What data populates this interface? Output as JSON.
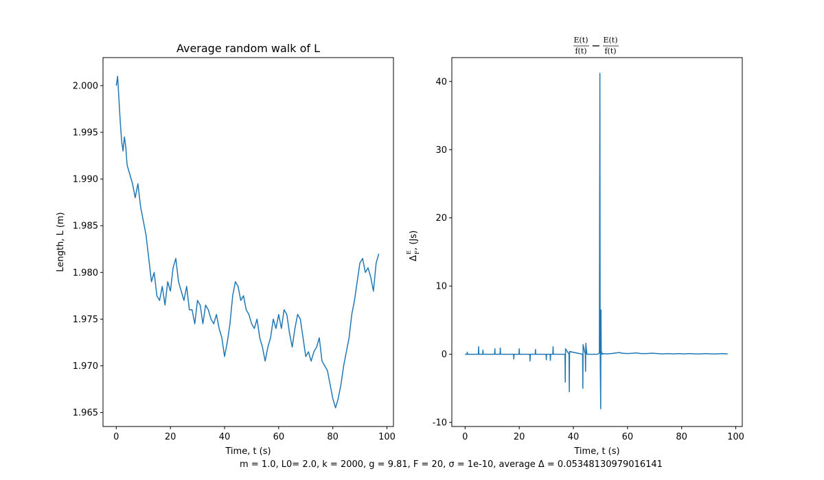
{
  "chart_data": [
    {
      "type": "line",
      "title": "Average random walk of L",
      "xlabel": "Time, t (s)",
      "ylabel": "Length, L (m)",
      "xlim": [
        -4.9,
        102.4
      ],
      "ylim": [
        1.9635,
        2.003
      ],
      "xticks": [
        0,
        20,
        40,
        60,
        80,
        100
      ],
      "yticks": [
        1.965,
        1.97,
        1.975,
        1.98,
        1.985,
        1.99,
        1.995,
        2.0
      ],
      "ytick_labels": [
        "1.965",
        "1.970",
        "1.975",
        "1.980",
        "1.985",
        "1.990",
        "1.995",
        "2.000"
      ],
      "color": "#1f77b4",
      "series": [
        {
          "x": [
            0,
            0.5,
            1,
            1.5,
            2,
            2.5,
            3,
            3.5,
            4,
            5,
            6,
            7,
            8,
            9,
            10,
            11,
            12,
            13,
            14,
            15,
            16,
            17,
            18,
            19,
            20,
            21,
            22,
            23,
            24,
            25,
            26,
            27,
            28,
            29,
            30,
            31,
            32,
            33,
            34,
            35,
            36,
            37,
            38,
            39,
            40,
            41,
            42,
            43,
            44,
            45,
            46,
            47,
            48,
            49,
            50,
            51,
            52,
            53,
            54,
            55,
            56,
            57,
            58,
            59,
            60,
            61,
            62,
            63,
            64,
            65,
            66,
            67,
            68,
            69,
            70,
            71,
            72,
            73,
            74,
            75,
            76,
            77,
            78,
            79,
            80,
            81,
            82,
            83,
            84,
            85,
            86,
            87,
            88,
            89,
            90,
            91,
            92,
            93,
            94,
            95,
            96,
            97
          ],
          "y": [
            2.0,
            2.001,
            1.9985,
            1.996,
            1.994,
            1.993,
            1.9945,
            1.9935,
            1.9915,
            1.9905,
            1.9895,
            1.988,
            1.9895,
            1.987,
            1.9855,
            1.984,
            1.9815,
            1.979,
            1.98,
            1.9775,
            1.977,
            1.9785,
            1.9765,
            1.979,
            1.978,
            1.9805,
            1.9815,
            1.979,
            1.978,
            1.977,
            1.9785,
            1.976,
            1.976,
            1.9745,
            1.977,
            1.9765,
            1.9745,
            1.9765,
            1.976,
            1.975,
            1.9745,
            1.9755,
            1.974,
            1.973,
            1.971,
            1.9725,
            1.9745,
            1.9775,
            1.979,
            1.9785,
            1.977,
            1.9775,
            1.976,
            1.9755,
            1.9745,
            1.974,
            1.975,
            1.973,
            1.972,
            1.9705,
            1.972,
            1.973,
            1.975,
            1.974,
            1.9755,
            1.974,
            1.976,
            1.9755,
            1.9735,
            1.972,
            1.974,
            1.9755,
            1.975,
            1.973,
            1.971,
            1.9715,
            1.9705,
            1.9715,
            1.972,
            1.973,
            1.9705,
            1.97,
            1.9695,
            1.968,
            1.9665,
            1.9655,
            1.9665,
            1.968,
            1.97,
            1.9715,
            1.973,
            1.9755,
            1.977,
            1.979,
            1.981,
            1.9815,
            1.98,
            1.9805,
            1.9795,
            1.978,
            1.981,
            1.982
          ]
        }
      ]
    },
    {
      "type": "line",
      "title": "E(t)/f(t) − E(t)/f(t)",
      "title_parts": {
        "n1": "E(t)",
        "d1": "f(t)",
        "op": "−",
        "n2": "E(t)",
        "d2": "f(t)"
      },
      "xlabel": "Time, t (s)",
      "ylabel_parts": {
        "delta": "Δ",
        "sup": "E",
        "sub": "F",
        "rest": ", (Js)"
      },
      "xlim": [
        -4.9,
        102.4
      ],
      "ylim": [
        -10.6,
        43.5
      ],
      "xticks": [
        0,
        20,
        40,
        60,
        80,
        100
      ],
      "yticks": [
        -10,
        0,
        10,
        20,
        30,
        40
      ],
      "color": "#1f77b4",
      "series": [
        {
          "x": [
            0,
            0.7,
            0.8,
            0.9,
            1.5,
            4.9,
            5.0,
            5.1,
            6.5,
            6.6,
            6.7,
            10.9,
            11.0,
            11.1,
            12.9,
            13.0,
            13.1,
            17.9,
            18.0,
            18.1,
            19.9,
            20.0,
            20.1,
            23.9,
            24.0,
            24.1,
            25.9,
            26.0,
            26.1,
            29.9,
            30.0,
            30.1,
            31.4,
            31.5,
            31.6,
            32.4,
            32.5,
            32.6,
            36.9,
            37.0,
            37.1,
            38.4,
            38.5,
            38.6,
            43.4,
            43.5,
            43.6,
            44.4,
            44.5,
            44.6,
            45.0,
            49.0,
            49.6,
            49.8,
            49.9,
            50.0,
            50.1,
            50.2,
            50.3,
            50.4,
            50.5,
            50.6,
            50.7,
            50.8,
            51.2,
            52,
            54,
            56,
            57,
            58,
            60,
            62,
            63,
            65,
            67,
            69,
            71,
            73,
            75,
            77,
            79,
            81,
            83,
            85,
            87,
            89,
            91,
            93,
            95,
            97
          ],
          "y": [
            0,
            0,
            0.3,
            0,
            0,
            0,
            1.1,
            0,
            0,
            0.6,
            0,
            0,
            0.8,
            0,
            0,
            0.9,
            0,
            0,
            -0.7,
            0,
            0,
            0.8,
            0,
            0,
            -1.0,
            0,
            0,
            0.7,
            0,
            0,
            -0.8,
            0,
            0,
            -0.9,
            0,
            0,
            1.1,
            0,
            0,
            -4.1,
            0.8,
            0,
            -5.5,
            0.4,
            0,
            -5.0,
            1.4,
            0,
            -2.5,
            1.6,
            0,
            0,
            0.2,
            41.2,
            0.4,
            -4.3,
            -8.0,
            6.5,
            0.2,
            0.4,
            0.1,
            0,
            0.1,
            0,
            0.1,
            0.05,
            0.1,
            0.2,
            0.25,
            0.15,
            0.1,
            0.15,
            0.2,
            0.1,
            0.1,
            0.15,
            0.1,
            0.05,
            0.1,
            0.05,
            0.1,
            0.05,
            0.1,
            0.05,
            0.05,
            0.1,
            0.05,
            0.05,
            0.1,
            0.05
          ]
        }
      ]
    }
  ],
  "footer": "m = 1.0, L0= 2.0, k = 2000, g = 9.81, F = 20, σ = 1e-10, average Δ = 0.05348130979016141"
}
